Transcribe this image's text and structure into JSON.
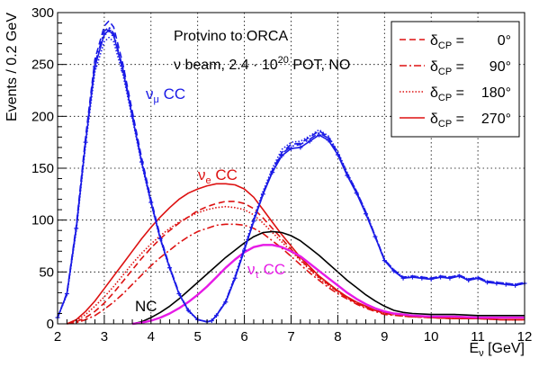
{
  "chart_data": {
    "type": "line",
    "title": "",
    "xlabel": "E",
    "xlabel_sub": "ν",
    "xlabel_unit": " [GeV]",
    "ylabel": "Events / 0.2 GeV",
    "xlim": [
      2,
      12
    ],
    "ylim": [
      0,
      300
    ],
    "xticks": [
      2,
      3,
      4,
      5,
      6,
      7,
      8,
      9,
      10,
      11,
      12
    ],
    "yticks": [
      0,
      50,
      100,
      150,
      200,
      250,
      300
    ],
    "grid": true,
    "legend_position": "top-right",
    "annotations": [
      {
        "text": "Protvino to ORCA"
      },
      {
        "pre": "ν beam, 2.4 · 10",
        "sup": "20",
        "post": " POT, NO"
      }
    ],
    "legend": [
      {
        "sym": "δ",
        "sub": "CP",
        "eq": " = ",
        "val": "0°",
        "color": "#dd1111",
        "style": "dashed"
      },
      {
        "sym": "δ",
        "sub": "CP",
        "eq": " = ",
        "val": "90°",
        "color": "#dd1111",
        "style": "dashdot"
      },
      {
        "sym": "δ",
        "sub": "CP",
        "eq": " = ",
        "val": "180°",
        "color": "#dd1111",
        "style": "dotted"
      },
      {
        "sym": "δ",
        "sub": "CP",
        "eq": " = ",
        "val": "270°",
        "color": "#dd1111",
        "style": "solid"
      }
    ],
    "group_labels": [
      {
        "id": "numu",
        "main": "ν",
        "sub": "μ",
        "post": " CC",
        "color": "#1a1ae6"
      },
      {
        "id": "nue",
        "main": "ν",
        "sub": "e",
        "post": " CC",
        "color": "#dd1111"
      },
      {
        "id": "nutau",
        "main": "ν",
        "sub": "τ",
        "post": " CC",
        "color": "#e61ae6"
      },
      {
        "id": "nc",
        "main": "NC",
        "sub": "",
        "post": "",
        "color": "#000000"
      }
    ],
    "series": [
      {
        "group": "numu",
        "variant": "0°",
        "color": "#1a1ae6",
        "style": "dashed",
        "x": [
          2.0,
          2.2,
          2.4,
          2.6,
          2.8,
          3.0,
          3.1,
          3.2,
          3.4,
          3.6,
          3.8,
          4.0,
          4.2,
          4.4,
          4.6,
          4.8,
          5.0,
          5.2,
          5.3,
          5.4,
          5.6,
          5.8,
          6.0,
          6.2,
          6.4,
          6.6,
          6.8,
          7.0,
          7.2,
          7.4,
          7.6,
          7.8,
          8.0,
          8.2,
          8.4,
          8.6,
          8.8,
          9.0,
          9.2,
          9.4,
          9.6,
          9.8,
          10.0,
          10.2,
          10.4,
          10.6,
          10.8,
          11.0,
          11.2,
          11.4,
          11.6,
          11.8,
          12.0
        ],
        "y": [
          6,
          30,
          95,
          180,
          255,
          287,
          292,
          286,
          250,
          205,
          160,
          120,
          84,
          55,
          30,
          13,
          4,
          2,
          3,
          8,
          22,
          45,
          72,
          100,
          126,
          148,
          165,
          173,
          174,
          180,
          186,
          180,
          165,
          145,
          128,
          108,
          85,
          62,
          52,
          45,
          46,
          45,
          44,
          46,
          45,
          47,
          43,
          45,
          41,
          40,
          39,
          38,
          40
        ]
      },
      {
        "group": "numu",
        "variant": "90°",
        "color": "#1a1ae6",
        "style": "dashdot",
        "x": [
          2.0,
          2.2,
          2.4,
          2.6,
          2.8,
          3.0,
          3.1,
          3.2,
          3.4,
          3.6,
          3.8,
          4.0,
          4.2,
          4.4,
          4.6,
          4.8,
          5.0,
          5.2,
          5.3,
          5.4,
          5.6,
          5.8,
          6.0,
          6.2,
          6.4,
          6.6,
          6.8,
          7.0,
          7.2,
          7.4,
          7.6,
          7.8,
          8.0,
          8.2,
          8.4,
          8.6,
          8.8,
          9.0,
          9.2,
          9.4,
          9.6,
          9.8,
          10.0,
          10.2,
          10.4,
          10.6,
          10.8,
          11.0,
          11.2,
          11.4,
          11.6,
          11.8,
          12.0
        ],
        "y": [
          6,
          29,
          93,
          177,
          251,
          282,
          286,
          280,
          246,
          202,
          157,
          118,
          82,
          54,
          29,
          13,
          4,
          2,
          3,
          8,
          21,
          44,
          71,
          99,
          125,
          147,
          164,
          171,
          173,
          178,
          184,
          179,
          164,
          144,
          127,
          107,
          84,
          61,
          51,
          44,
          45,
          44,
          43,
          45,
          44,
          46,
          42,
          44,
          40,
          39,
          38,
          37,
          39
        ]
      },
      {
        "group": "numu",
        "variant": "180°",
        "color": "#1a1ae6",
        "style": "dotted",
        "x": [
          2.0,
          2.2,
          2.4,
          2.6,
          2.8,
          3.0,
          3.1,
          3.2,
          3.4,
          3.6,
          3.8,
          4.0,
          4.2,
          4.4,
          4.6,
          4.8,
          5.0,
          5.2,
          5.3,
          5.4,
          5.6,
          5.8,
          6.0,
          6.2,
          6.4,
          6.6,
          6.8,
          7.0,
          7.2,
          7.4,
          7.6,
          7.8,
          8.0,
          8.2,
          8.4,
          8.6,
          8.8,
          9.0,
          9.2,
          9.4,
          9.6,
          9.8,
          10.0,
          10.2,
          10.4,
          10.6,
          10.8,
          11.0,
          11.2,
          11.4,
          11.6,
          11.8,
          12.0
        ],
        "y": [
          6,
          28,
          90,
          172,
          243,
          272,
          276,
          272,
          240,
          198,
          154,
          116,
          81,
          53,
          29,
          12,
          4,
          2,
          3,
          8,
          22,
          46,
          74,
          102,
          128,
          150,
          168,
          175,
          176,
          181,
          187,
          181,
          166,
          146,
          128,
          108,
          85,
          62,
          52,
          45,
          46,
          45,
          44,
          46,
          45,
          47,
          43,
          45,
          41,
          40,
          39,
          38,
          40
        ]
      },
      {
        "group": "numu",
        "variant": "270°",
        "color": "#1a1ae6",
        "style": "solid",
        "x": [
          2.0,
          2.2,
          2.4,
          2.6,
          2.8,
          3.0,
          3.1,
          3.2,
          3.4,
          3.6,
          3.8,
          4.0,
          4.2,
          4.4,
          4.6,
          4.8,
          5.0,
          5.2,
          5.3,
          5.4,
          5.6,
          5.8,
          6.0,
          6.2,
          6.4,
          6.6,
          6.8,
          7.0,
          7.2,
          7.4,
          7.6,
          7.8,
          8.0,
          8.2,
          8.4,
          8.6,
          8.8,
          9.0,
          9.2,
          9.4,
          9.6,
          9.8,
          10.0,
          10.2,
          10.4,
          10.6,
          10.8,
          11.0,
          11.2,
          11.4,
          11.6,
          11.8,
          12.0
        ],
        "y": [
          6,
          29,
          92,
          175,
          248,
          279,
          283,
          278,
          244,
          200,
          156,
          117,
          82,
          54,
          29,
          13,
          4,
          2,
          3,
          8,
          21,
          44,
          71,
          99,
          125,
          146,
          162,
          169,
          170,
          176,
          182,
          177,
          163,
          143,
          126,
          106,
          84,
          61,
          51,
          44,
          45,
          44,
          43,
          45,
          44,
          46,
          42,
          44,
          40,
          39,
          38,
          37,
          39
        ]
      },
      {
        "group": "nue",
        "variant": "0°",
        "color": "#dd1111",
        "style": "dashed",
        "x": [
          2.2,
          2.4,
          2.6,
          2.8,
          3.0,
          3.2,
          3.4,
          3.6,
          3.8,
          4.0,
          4.2,
          4.4,
          4.6,
          4.8,
          5.0,
          5.2,
          5.4,
          5.6,
          5.8,
          6.0,
          6.2,
          6.4,
          6.6,
          6.8,
          7.0,
          7.2,
          7.4,
          7.6,
          7.8,
          8.0,
          8.2,
          8.4,
          8.6,
          8.8,
          9.0,
          9.5,
          10.0,
          10.5,
          11.0,
          11.5,
          12.0
        ],
        "y": [
          0,
          2,
          6,
          12,
          20,
          30,
          41,
          52,
          63,
          73,
          82,
          90,
          97,
          103,
          109,
          113,
          116,
          118,
          118,
          116,
          111,
          102,
          92,
          82,
          72,
          62,
          53,
          45,
          38,
          31,
          25,
          20,
          16,
          13,
          10,
          7,
          6,
          5,
          5,
          4,
          4
        ]
      },
      {
        "group": "nue",
        "variant": "90°",
        "color": "#dd1111",
        "style": "dashdot",
        "x": [
          2.2,
          2.4,
          2.6,
          2.8,
          3.0,
          3.2,
          3.4,
          3.6,
          3.8,
          4.0,
          4.2,
          4.4,
          4.6,
          4.8,
          5.0,
          5.2,
          5.4,
          5.6,
          5.8,
          6.0,
          6.2,
          6.4,
          6.6,
          6.8,
          7.0,
          7.2,
          7.4,
          7.6,
          7.8,
          8.0,
          8.2,
          8.4,
          8.6,
          8.8,
          9.0,
          9.5,
          10.0,
          10.5,
          11.0,
          11.5,
          12.0
        ],
        "y": [
          0,
          1,
          4,
          8,
          14,
          21,
          29,
          38,
          47,
          56,
          64,
          71,
          78,
          84,
          89,
          92,
          95,
          96,
          96,
          95,
          92,
          87,
          80,
          73,
          65,
          57,
          49,
          42,
          35,
          29,
          24,
          19,
          15,
          12,
          9,
          7,
          6,
          5,
          5,
          4,
          4
        ]
      },
      {
        "group": "nue",
        "variant": "180°",
        "color": "#dd1111",
        "style": "dotted",
        "x": [
          2.2,
          2.4,
          2.6,
          2.8,
          3.0,
          3.2,
          3.4,
          3.6,
          3.8,
          4.0,
          4.2,
          4.4,
          4.6,
          4.8,
          5.0,
          5.2,
          5.4,
          5.6,
          5.8,
          6.0,
          6.2,
          6.4,
          6.6,
          6.8,
          7.0,
          7.2,
          7.4,
          7.6,
          7.8,
          8.0,
          8.2,
          8.4,
          8.6,
          8.8,
          9.0,
          9.5,
          10.0,
          10.5,
          11.0,
          11.5,
          12.0
        ],
        "y": [
          0,
          3,
          9,
          17,
          26,
          36,
          47,
          58,
          68,
          77,
          85,
          92,
          98,
          103,
          107,
          110,
          112,
          113,
          112,
          110,
          105,
          97,
          88,
          79,
          70,
          61,
          52,
          44,
          37,
          31,
          25,
          20,
          16,
          13,
          10,
          7,
          6,
          5,
          5,
          4,
          4
        ]
      },
      {
        "group": "nue",
        "variant": "270°",
        "color": "#dd1111",
        "style": "solid",
        "x": [
          2.2,
          2.4,
          2.6,
          2.8,
          3.0,
          3.2,
          3.4,
          3.6,
          3.8,
          4.0,
          4.2,
          4.4,
          4.6,
          4.8,
          5.0,
          5.2,
          5.4,
          5.6,
          5.8,
          6.0,
          6.2,
          6.4,
          6.6,
          6.8,
          7.0,
          7.2,
          7.4,
          7.6,
          7.8,
          8.0,
          8.2,
          8.4,
          8.6,
          8.8,
          9.0,
          9.5,
          10.0,
          10.5,
          11.0,
          11.5,
          12.0
        ],
        "y": [
          0,
          4,
          12,
          22,
          34,
          46,
          58,
          70,
          82,
          93,
          103,
          112,
          120,
          126,
          130,
          133,
          135,
          135,
          134,
          130,
          122,
          110,
          98,
          86,
          75,
          64,
          55,
          46,
          39,
          32,
          26,
          21,
          17,
          13,
          11,
          8,
          6,
          5,
          5,
          4,
          4
        ]
      },
      {
        "group": "nc",
        "variant": "",
        "color": "#000000",
        "style": "solid",
        "x": [
          3.6,
          3.8,
          4.0,
          4.2,
          4.4,
          4.6,
          4.8,
          5.0,
          5.2,
          5.4,
          5.6,
          5.8,
          6.0,
          6.2,
          6.4,
          6.6,
          6.8,
          7.0,
          7.2,
          7.4,
          7.6,
          7.8,
          8.0,
          8.2,
          8.4,
          8.6,
          8.8,
          9.0,
          9.2,
          9.4,
          9.6,
          10.0,
          10.5,
          11.0,
          11.5,
          12.0
        ],
        "y": [
          0,
          2,
          6,
          11,
          17,
          24,
          32,
          40,
          48,
          56,
          64,
          71,
          78,
          84,
          88,
          89,
          88,
          85,
          80,
          73,
          66,
          58,
          50,
          42,
          35,
          28,
          22,
          17,
          13,
          11,
          10,
          9,
          9,
          8,
          8,
          8
        ]
      },
      {
        "group": "nutau",
        "variant": "",
        "color": "#e61ae6",
        "style": "solid",
        "x": [
          3.6,
          3.8,
          4.0,
          4.2,
          4.4,
          4.6,
          4.8,
          5.0,
          5.2,
          5.4,
          5.6,
          5.8,
          6.0,
          6.2,
          6.4,
          6.6,
          6.8,
          7.0,
          7.2,
          7.4,
          7.6,
          7.8,
          8.0,
          8.2,
          8.4,
          8.6,
          8.8,
          9.0,
          9.2,
          9.4,
          9.6,
          10.0,
          10.5,
          11.0,
          11.5,
          12.0
        ],
        "y": [
          0,
          1,
          3,
          6,
          10,
          15,
          21,
          28,
          36,
          45,
          54,
          62,
          69,
          74,
          76,
          76,
          74,
          70,
          65,
          58,
          51,
          44,
          37,
          30,
          24,
          19,
          15,
          12,
          10,
          9,
          8,
          7,
          7,
          6,
          6,
          6
        ]
      }
    ]
  }
}
